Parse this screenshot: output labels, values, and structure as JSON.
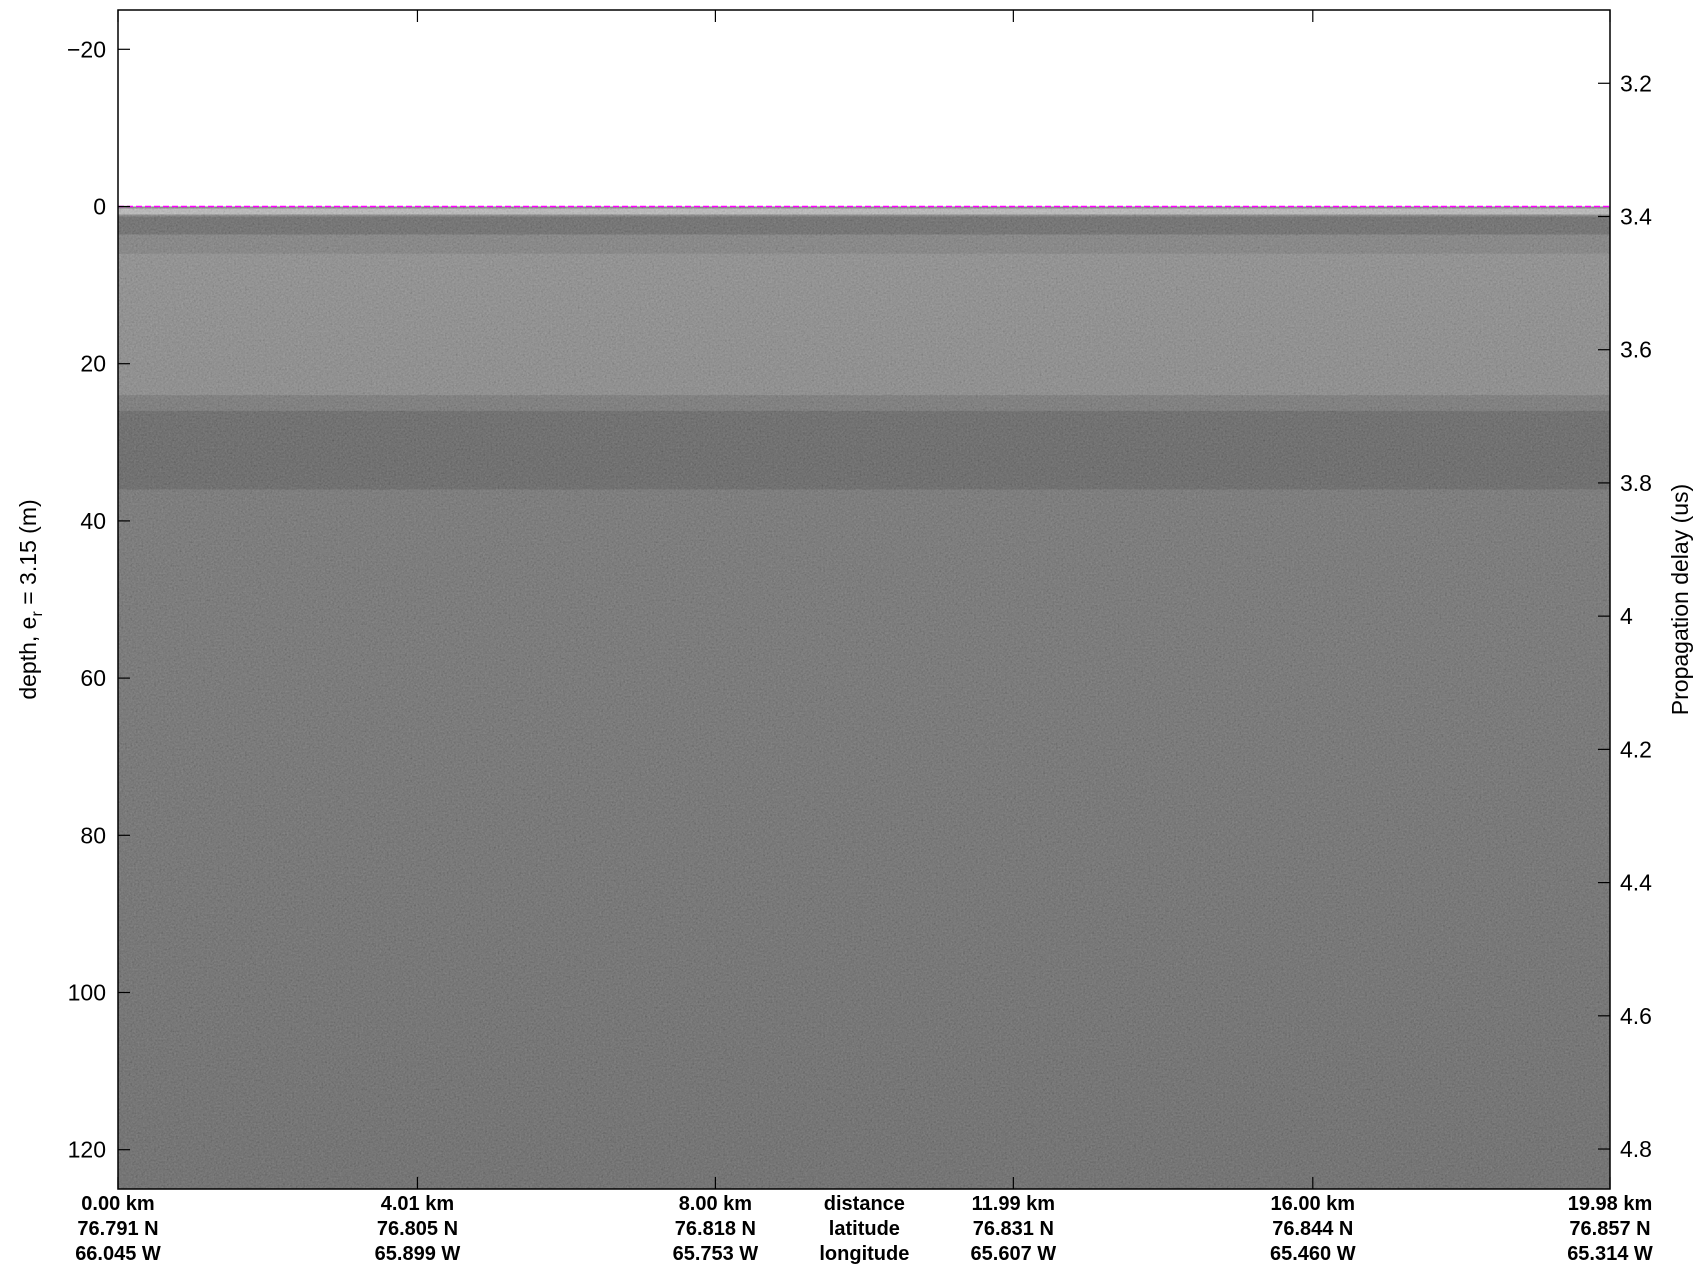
{
  "chart_data": {
    "type": "heatmap",
    "description_kind": "radar echogram (grayscale)",
    "colormap": "gray",
    "surface_line_color": "#ff00ff",
    "surface_depth_m": 0,
    "y_left": {
      "label_main": "depth, e",
      "label_sub": "r",
      "label_tail": " = 3.15 (m)",
      "lim": [
        -25,
        125
      ],
      "reversed": true,
      "ticks": [
        -20,
        0,
        20,
        40,
        60,
        80,
        100,
        120
      ],
      "tick_labels": [
        "−20",
        "0",
        "20",
        "40",
        "60",
        "80",
        "100",
        "120"
      ]
    },
    "y_right": {
      "label": "Propagation delay (us)",
      "lim": [
        3.09,
        4.86
      ],
      "reversed": true,
      "ticks": [
        3.2,
        3.4,
        3.6,
        3.8,
        4.0,
        4.2,
        4.4,
        4.6,
        4.8
      ],
      "tick_labels": [
        "3.2",
        "3.4",
        "3.6",
        "3.8",
        "4",
        "4.2",
        "4.4",
        "4.6",
        "4.8"
      ]
    },
    "x": {
      "lim": [
        0,
        19.98
      ],
      "unit": "km",
      "ticks": [
        0.0,
        4.01,
        8.0,
        11.99,
        16.0,
        19.98
      ]
    },
    "bottom_rows": [
      {
        "name": "distance",
        "values": [
          "0.00 km",
          "4.01 km",
          "8.00 km",
          "11.99 km",
          "16.00 km",
          "19.98 km"
        ]
      },
      {
        "name": "latitude",
        "values": [
          "76.791 N",
          "76.805 N",
          "76.818 N",
          "76.831 N",
          "76.844 N",
          "76.857 N"
        ]
      },
      {
        "name": "longitude",
        "values": [
          "66.045 W",
          "65.899 W",
          "65.753 W",
          "65.607 W",
          "65.460 W",
          "65.314 W"
        ]
      }
    ]
  }
}
